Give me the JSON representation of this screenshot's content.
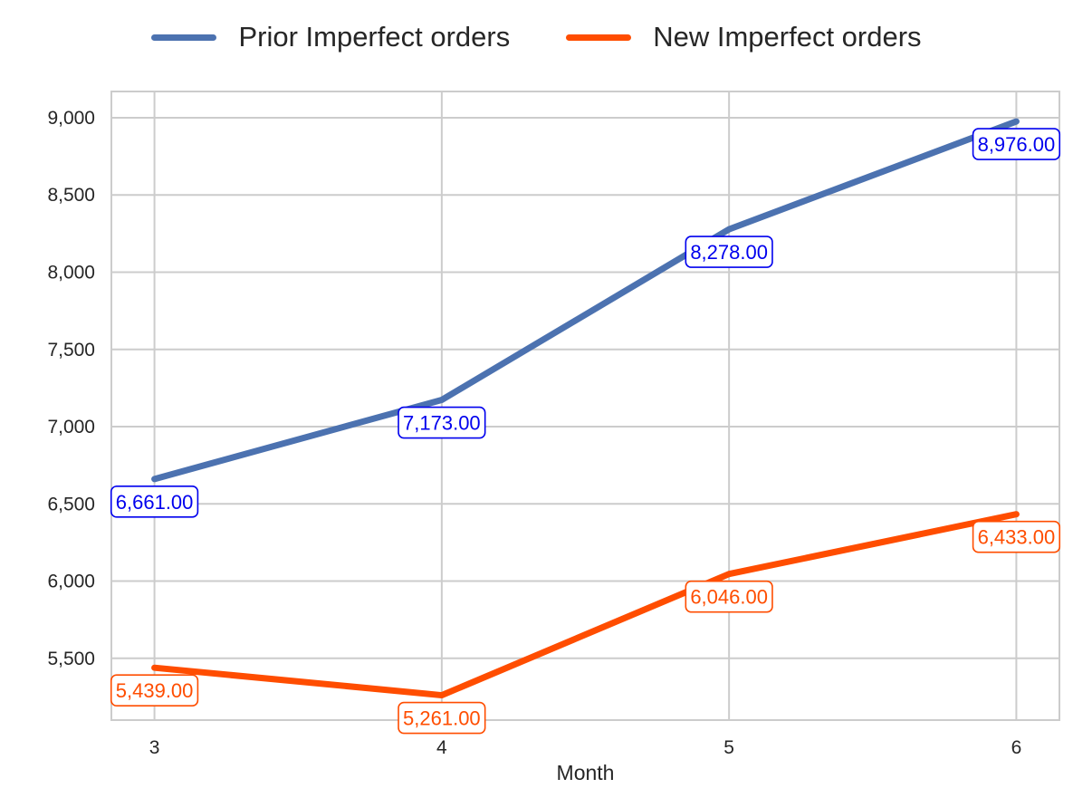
{
  "chart_data": {
    "type": "line",
    "title": "",
    "xlabel": "Month",
    "ylabel": "",
    "x": [
      3,
      4,
      5,
      6
    ],
    "x_tick_labels": [
      "3",
      "4",
      "5",
      "6"
    ],
    "ylim": [
      5100,
      9170
    ],
    "y_ticks": [
      5500,
      6000,
      6500,
      7000,
      7500,
      8000,
      8500,
      9000
    ],
    "y_tick_labels": [
      "5,500",
      "6,000",
      "6,500",
      "7,000",
      "7,500",
      "8,000",
      "8,500",
      "9,000"
    ],
    "grid": true,
    "legend_position": "top-center",
    "series": [
      {
        "name": "Prior Imperfect orders",
        "values": [
          6661,
          7173,
          8278,
          8976
        ],
        "labels": [
          "6,661.00",
          "7,173.00",
          "8,278.00",
          "8,976.00"
        ],
        "color": "#4c72b0",
        "label_color": "#0000ee"
      },
      {
        "name": "New Imperfect orders",
        "values": [
          5439,
          5261,
          6046,
          6433
        ],
        "labels": [
          "5,439.00",
          "5,261.00",
          "6,046.00",
          "6,433.00"
        ],
        "color": "#ff4d00",
        "label_color": "#ff4d00"
      }
    ]
  }
}
